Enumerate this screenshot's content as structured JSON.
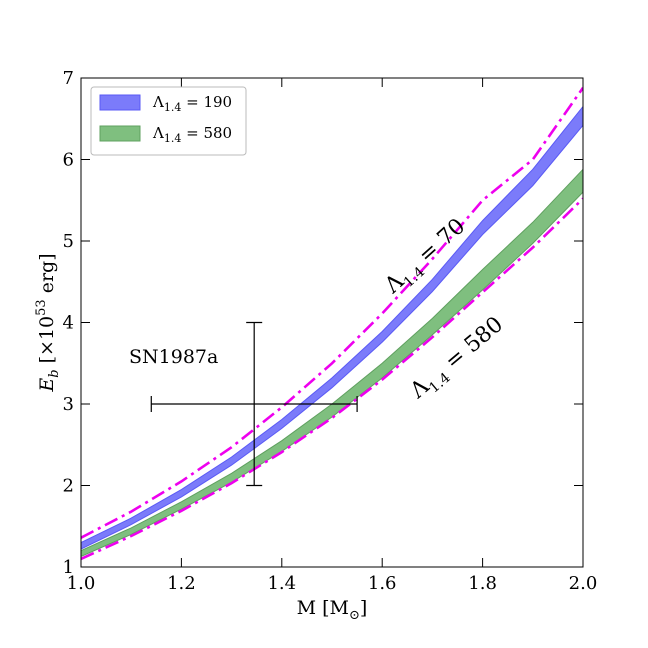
{
  "chart_data": {
    "type": "area",
    "xlabel": "M [M",
    "xlabel_sub": "⊙",
    "xlabel_close": "]",
    "ylabel": "E",
    "ylabel_sub": "b",
    "ylabel_rest": " [×10",
    "ylabel_exp": "53",
    "ylabel_unit": " erg]",
    "xlim": [
      1.0,
      2.0
    ],
    "ylim": [
      1,
      7
    ],
    "xticks": [
      1.0,
      1.2,
      1.4,
      1.6,
      1.8,
      2.0
    ],
    "xtick_labels": [
      "1.0",
      "1.2",
      "1.4",
      "1.6",
      "1.8",
      "2.0"
    ],
    "yticks": [
      1,
      2,
      3,
      4,
      5,
      6,
      7
    ],
    "ytick_labels": [
      "1",
      "2",
      "3",
      "4",
      "5",
      "6",
      "7"
    ],
    "grid": false,
    "legend_position": "top-left",
    "bands": [
      {
        "label_symbol": "Λ",
        "label_sub": "1.4",
        "label_value": " = 190",
        "color": "#7b7bfa",
        "edge_color": "#5a5af5",
        "x": [
          1.0,
          1.1,
          1.2,
          1.3,
          1.4,
          1.5,
          1.6,
          1.7,
          1.8,
          1.9,
          2.0
        ],
        "lower": [
          1.22,
          1.52,
          1.86,
          2.25,
          2.7,
          3.2,
          3.76,
          4.38,
          5.08,
          5.68,
          6.42
        ],
        "upper": [
          1.3,
          1.6,
          1.95,
          2.35,
          2.81,
          3.32,
          3.89,
          4.53,
          5.25,
          5.88,
          6.65
        ]
      },
      {
        "label_symbol": "Λ",
        "label_sub": "1.4",
        "label_value": " = 580",
        "color": "#7fbf7f",
        "edge_color": "#5fa05f",
        "x": [
          1.0,
          1.1,
          1.2,
          1.3,
          1.4,
          1.5,
          1.6,
          1.7,
          1.8,
          1.9,
          2.0
        ],
        "lower": [
          1.13,
          1.4,
          1.71,
          2.04,
          2.42,
          2.84,
          3.32,
          3.85,
          4.4,
          4.97,
          5.6
        ],
        "upper": [
          1.2,
          1.48,
          1.8,
          2.15,
          2.55,
          3.0,
          3.5,
          4.05,
          4.65,
          5.23,
          5.88
        ]
      }
    ],
    "lines": [
      {
        "style": "dash-dot",
        "color": "#ee00ee",
        "label_symbol": "Λ",
        "label_sub": "1.4",
        "label_value": " = 70",
        "x": [
          1.0,
          1.1,
          1.2,
          1.3,
          1.4,
          1.5,
          1.6,
          1.7,
          1.8,
          1.9,
          2.0
        ],
        "y": [
          1.36,
          1.68,
          2.05,
          2.47,
          2.96,
          3.5,
          4.11,
          4.78,
          5.5,
          6.0,
          6.88
        ]
      },
      {
        "style": "dash-dot",
        "color": "#ee00ee",
        "label_symbol": "Λ",
        "label_sub": "1.4",
        "label_value": " = 580",
        "x": [
          1.0,
          1.1,
          1.2,
          1.3,
          1.4,
          1.5,
          1.6,
          1.7,
          1.8,
          1.9,
          2.0
        ],
        "y": [
          1.1,
          1.38,
          1.69,
          2.03,
          2.41,
          2.83,
          3.3,
          3.82,
          4.37,
          4.92,
          5.52
        ]
      }
    ],
    "errorbar": {
      "label": "SN1987a",
      "x": 1.345,
      "y": 3.0,
      "xerr_low": 1.14,
      "xerr_high": 1.55,
      "yerr_low": 2.0,
      "yerr_high": 4.0,
      "color": "#000000"
    }
  }
}
